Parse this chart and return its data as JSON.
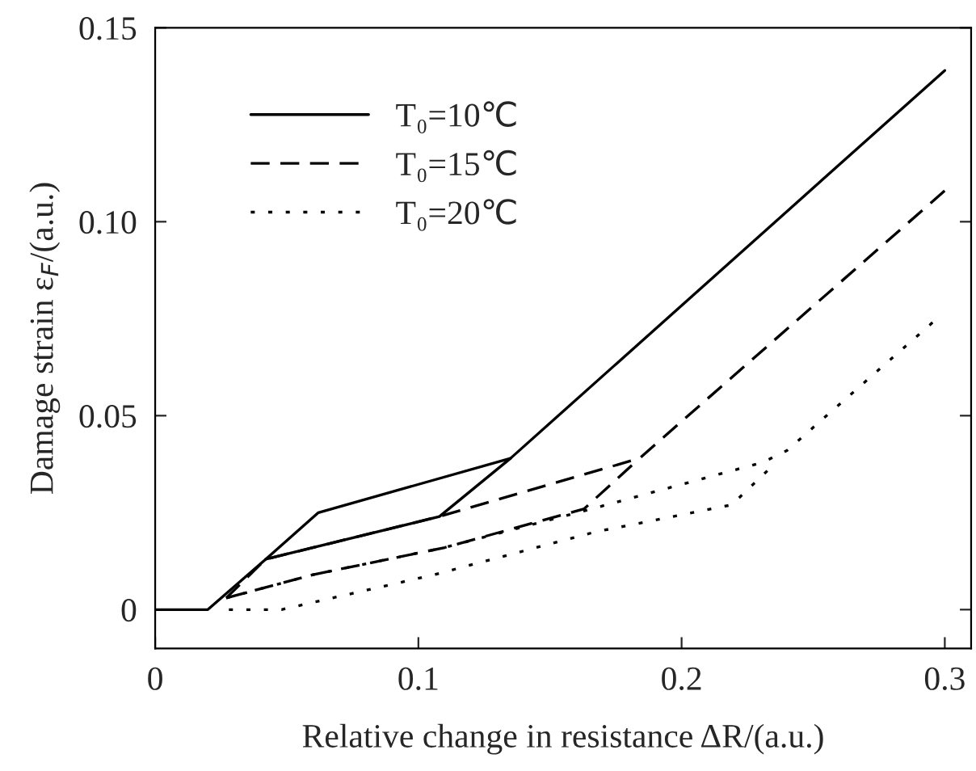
{
  "chart_data": {
    "type": "line",
    "xlabel": "Relative change in resistance ΔR/(a.u.)",
    "ylabel": "Damage strain ε$_{F}$/(a.u.)",
    "xlim": [
      0,
      0.31
    ],
    "ylim": [
      -0.01,
      0.15
    ],
    "xticks": [
      0,
      {
        "value": 0.1,
        "label": "0.1"
      },
      {
        "value": 0.2,
        "label": "0.2"
      },
      {
        "value": 0.3,
        "label": "0.3"
      }
    ],
    "yticks": [
      0,
      {
        "value": 0.05,
        "label": "0.05"
      },
      {
        "value": 0.1,
        "label": "0.10"
      },
      {
        "value": 0.15,
        "label": "0.15"
      }
    ],
    "grid": false,
    "legend": "top left",
    "marker": "none",
    "series": [
      {
        "name": "T₀=10℃",
        "color": "#000000",
        "line_style": "solid",
        "x": [
          0,
          0.02,
          0.042,
          0.062,
          0.135,
          0.3
        ],
        "values": [
          0,
          0,
          0.013,
          0.025,
          0.039,
          0.139
        ]
      },
      {
        "color": "#000000",
        "line_style": "solid",
        "x": [
          0.042,
          0.108,
          0.135
        ],
        "values": [
          0.013,
          0.024,
          0.039
        ]
      },
      {
        "name": "T₀=15℃",
        "color": "#000000",
        "line_style": "dashed",
        "x": [
          0.027,
          0.042,
          0.108,
          0.184,
          0.3
        ],
        "values": [
          0.003,
          0.013,
          0.024,
          0.039,
          0.108
        ]
      },
      {
        "color": "#000000",
        "line_style": "dashed",
        "x": [
          0.027,
          0.06,
          0.11,
          0.163,
          0.184
        ],
        "values": [
          0.003,
          0.009,
          0.016,
          0.026,
          0.039
        ]
      },
      {
        "name": "T₀=20℃",
        "color": "#000000",
        "line_style": "dotted",
        "x": [
          0.027,
          0.06,
          0.11,
          0.166,
          0.231,
          0.24,
          0.297
        ],
        "values": [
          0.003,
          0.009,
          0.016,
          0.026,
          0.038,
          0.041,
          0.075
        ]
      },
      {
        "color": "#000000",
        "line_style": "dotted",
        "x": [
          0.028,
          0.048,
          0.106,
          0.167,
          0.219,
          0.236
        ],
        "values": [
          0,
          0,
          0.009,
          0.02,
          0.027,
          0.038
        ]
      }
    ]
  }
}
